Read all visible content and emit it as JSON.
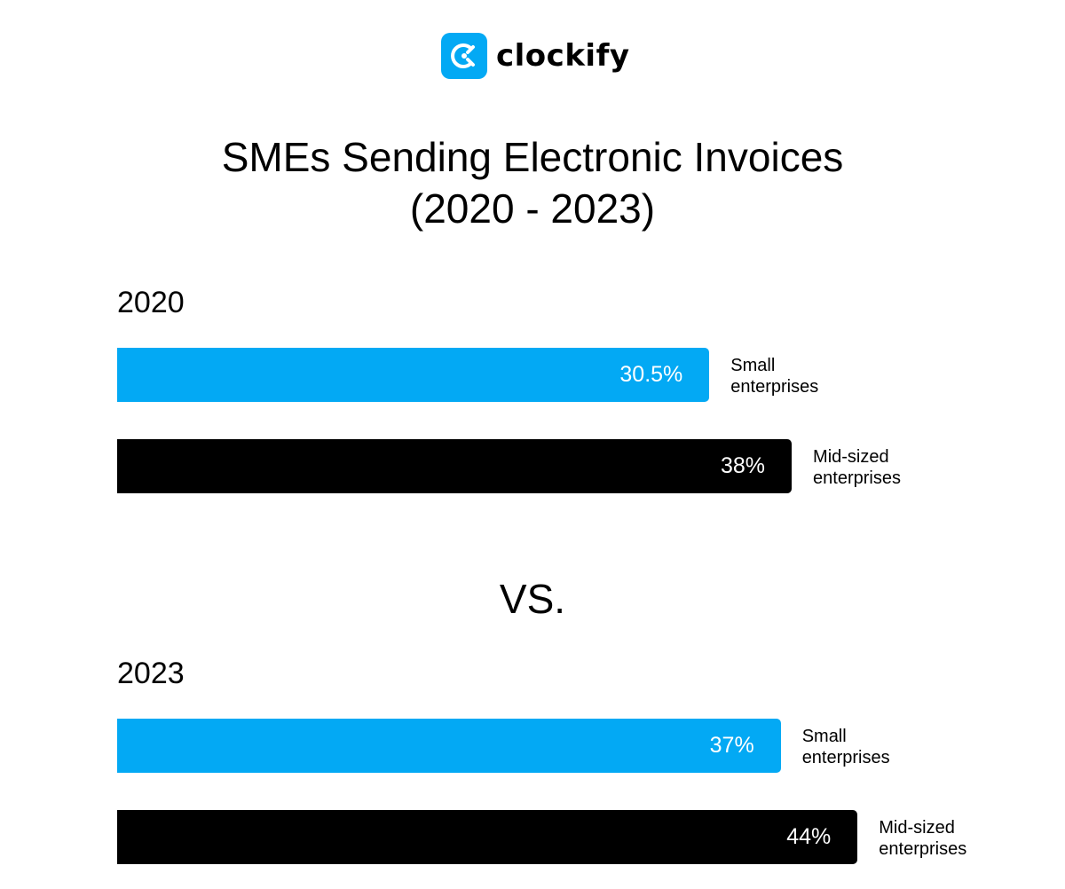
{
  "brand": {
    "name": "clockify",
    "color": "#03A9F4",
    "icon": "clockify-logo-icon"
  },
  "chart_data": {
    "type": "bar",
    "orientation": "horizontal",
    "title": "SMEs Sending Electronic Invoices\n(2020 - 2023)",
    "separator": "VS.",
    "unit": "%",
    "groups": [
      {
        "year": "2020",
        "bars": [
          {
            "category": "Small enterprises",
            "value": 30.5,
            "label": "30.5%",
            "color": "#03A9F4"
          },
          {
            "category": "Mid-sized enterprises",
            "value": 38,
            "label": "38%",
            "color": "#000000"
          }
        ]
      },
      {
        "year": "2023",
        "bars": [
          {
            "category": "Small enterprises",
            "value": 37,
            "label": "37%",
            "color": "#03A9F4"
          },
          {
            "category": "Mid-sized enterprises",
            "value": 44,
            "label": "44%",
            "color": "#000000"
          }
        ]
      }
    ],
    "grid": false,
    "legend": "none"
  }
}
